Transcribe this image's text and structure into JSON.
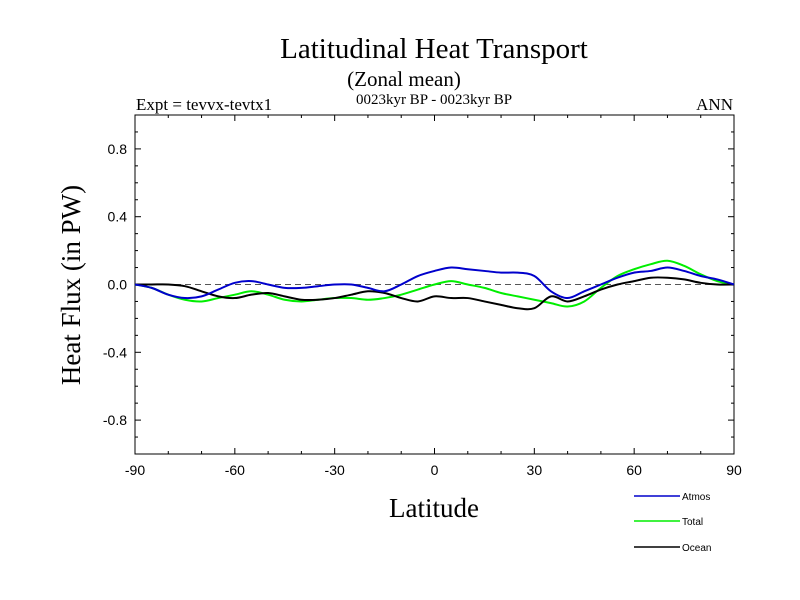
{
  "chart_data": {
    "type": "line",
    "title": "Latitudinal Heat Transport",
    "subtitle": "(Zonal mean)",
    "period": "0023kyr BP - 0023kyr BP",
    "left_label": "Expt = tevvx-tevtx1",
    "right_label": "ANN",
    "xlabel": "Latitude",
    "ylabel": "Heat Flux (in PW)",
    "xlim": [
      -90,
      90
    ],
    "ylim": [
      -1.0,
      1.0
    ],
    "x_ticks": [
      -90,
      -60,
      -30,
      0,
      30,
      60,
      90
    ],
    "x_tick_labels": [
      "-90",
      "-60",
      "-30",
      "0",
      "30",
      "60",
      "90"
    ],
    "y_ticks": [
      0.8,
      0.4,
      0.0,
      -0.4,
      -0.8
    ],
    "y_tick_labels": [
      "0.8",
      "0.4",
      "0.0",
      "-0.4",
      "-0.8"
    ],
    "zero_line": "dashed",
    "legend_position": "bottom-right",
    "series": [
      {
        "name": "Atmos",
        "color": "#0000cc",
        "x": [
          -90,
          -85,
          -80,
          -75,
          -70,
          -65,
          -60,
          -55,
          -50,
          -45,
          -40,
          -35,
          -30,
          -25,
          -20,
          -15,
          -10,
          -5,
          0,
          5,
          10,
          15,
          20,
          25,
          30,
          35,
          40,
          45,
          50,
          55,
          60,
          65,
          70,
          75,
          80,
          85,
          90
        ],
        "y": [
          0.0,
          -0.02,
          -0.06,
          -0.08,
          -0.07,
          -0.03,
          0.01,
          0.02,
          0.0,
          -0.02,
          -0.02,
          -0.01,
          0.0,
          0.0,
          -0.02,
          -0.04,
          0.0,
          0.05,
          0.08,
          0.1,
          0.09,
          0.08,
          0.07,
          0.07,
          0.05,
          -0.04,
          -0.08,
          -0.04,
          0.0,
          0.04,
          0.07,
          0.08,
          0.1,
          0.08,
          0.05,
          0.03,
          0.0
        ]
      },
      {
        "name": "Total",
        "color": "#00ee00",
        "x": [
          -90,
          -85,
          -80,
          -75,
          -70,
          -65,
          -60,
          -55,
          -50,
          -45,
          -40,
          -35,
          -30,
          -25,
          -20,
          -15,
          -10,
          -5,
          0,
          5,
          10,
          15,
          20,
          25,
          30,
          35,
          40,
          45,
          50,
          55,
          60,
          65,
          70,
          75,
          80,
          85,
          90
        ],
        "y": [
          0.0,
          -0.02,
          -0.06,
          -0.09,
          -0.1,
          -0.08,
          -0.06,
          -0.04,
          -0.06,
          -0.09,
          -0.1,
          -0.09,
          -0.08,
          -0.08,
          -0.09,
          -0.08,
          -0.06,
          -0.03,
          0.0,
          0.02,
          0.0,
          -0.02,
          -0.05,
          -0.07,
          -0.09,
          -0.11,
          -0.13,
          -0.1,
          -0.02,
          0.05,
          0.09,
          0.12,
          0.14,
          0.11,
          0.06,
          0.02,
          0.0
        ]
      },
      {
        "name": "Ocean",
        "color": "#000000",
        "x": [
          -90,
          -85,
          -80,
          -75,
          -70,
          -65,
          -60,
          -55,
          -50,
          -45,
          -40,
          -35,
          -30,
          -25,
          -20,
          -15,
          -10,
          -5,
          0,
          5,
          10,
          15,
          20,
          25,
          30,
          35,
          40,
          45,
          50,
          55,
          60,
          65,
          70,
          75,
          80,
          85,
          90
        ],
        "y": [
          0.0,
          0.0,
          0.0,
          -0.01,
          -0.04,
          -0.07,
          -0.08,
          -0.06,
          -0.05,
          -0.07,
          -0.09,
          -0.09,
          -0.08,
          -0.06,
          -0.04,
          -0.05,
          -0.08,
          -0.1,
          -0.07,
          -0.08,
          -0.08,
          -0.1,
          -0.12,
          -0.14,
          -0.14,
          -0.07,
          -0.1,
          -0.07,
          -0.03,
          0.0,
          0.02,
          0.04,
          0.04,
          0.03,
          0.01,
          0.0,
          0.0
        ]
      }
    ]
  }
}
